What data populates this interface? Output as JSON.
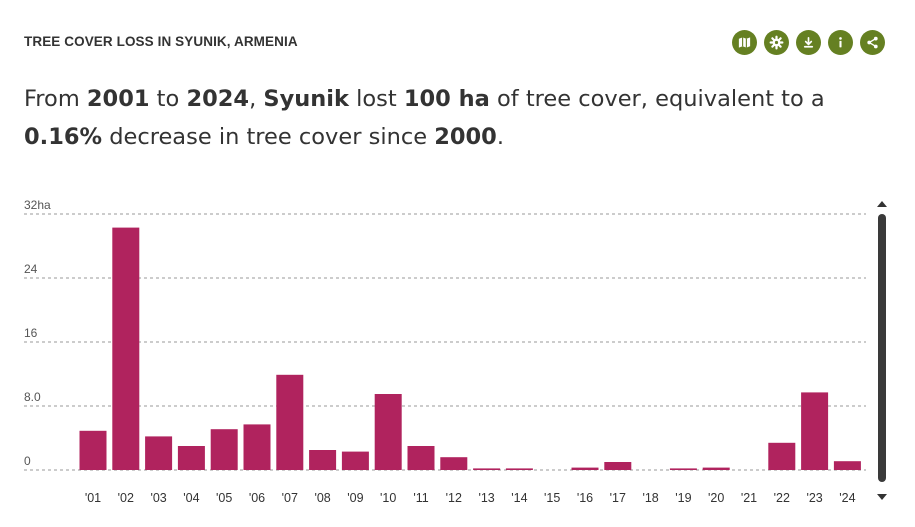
{
  "header": {
    "title": "TREE COVER LOSS IN SYUNIK, ARMENIA"
  },
  "toolbar": {
    "buttons": [
      {
        "icon": "map-icon"
      },
      {
        "icon": "gear-icon"
      },
      {
        "icon": "download-icon"
      },
      {
        "icon": "info-icon"
      },
      {
        "icon": "share-icon"
      }
    ],
    "color": "#658022"
  },
  "sentence": {
    "p1": "From ",
    "start_year": "2001",
    "p2": " to ",
    "end_year": "2024",
    "p3": ", ",
    "region": "Syunik",
    "p4": " lost ",
    "loss": "100 ha",
    "p5": " of tree cover, equivalent to a ",
    "percent": "0.16%",
    "p6": " decrease in tree cover since ",
    "baseline": "2000",
    "p7": "."
  },
  "chart_data": {
    "type": "bar",
    "categories": [
      "'01",
      "'02",
      "'03",
      "'04",
      "'05",
      "'06",
      "'07",
      "'08",
      "'09",
      "'10",
      "'11",
      "'12",
      "'13",
      "'14",
      "'15",
      "'16",
      "'17",
      "'18",
      "'19",
      "'20",
      "'21",
      "'22",
      "'23",
      "'24"
    ],
    "values": [
      4.9,
      30.3,
      4.2,
      3.0,
      5.1,
      5.7,
      11.9,
      2.5,
      2.3,
      9.5,
      3.0,
      1.6,
      0.2,
      0.2,
      0,
      0.3,
      1.0,
      0,
      0.2,
      0.3,
      0,
      3.4,
      9.7,
      1.1
    ],
    "y_ticks": [
      "0",
      "8.0",
      "16",
      "24",
      "32ha"
    ],
    "ylim": [
      0,
      32
    ],
    "grid": true,
    "bar_color": "#b0235e",
    "title": "",
    "xlabel": "",
    "ylabel": ""
  }
}
